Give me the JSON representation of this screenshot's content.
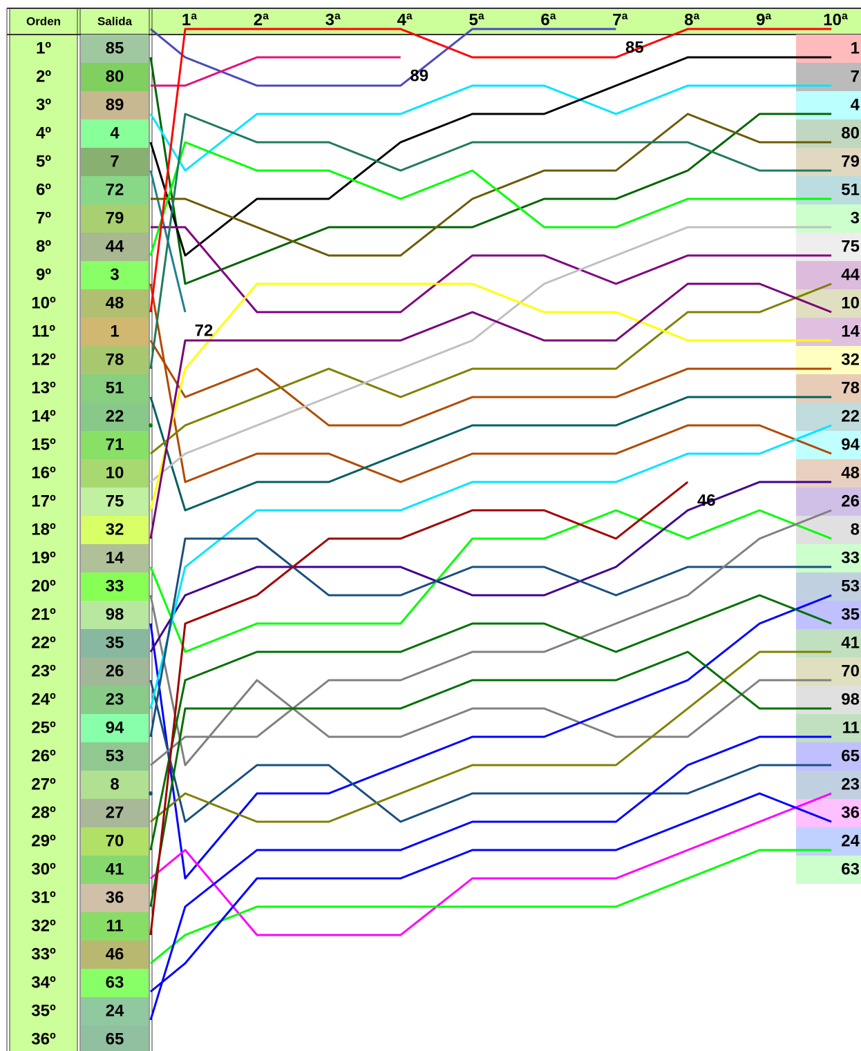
{
  "chart_data": {
    "type": "line",
    "row_header": "Orden",
    "start_header": "Salida",
    "row_labels": [
      "1º",
      "2º",
      "3º",
      "4º",
      "5º",
      "6º",
      "7º",
      "8º",
      "9º",
      "10º",
      "11º",
      "12º",
      "13º",
      "14º",
      "15º",
      "16º",
      "17º",
      "18º",
      "19º",
      "20º",
      "21º",
      "22º",
      "23º",
      "24º",
      "25º",
      "26º",
      "27º",
      "28º",
      "29º",
      "30º",
      "31º",
      "32º",
      "33º",
      "34º",
      "35º",
      "36º"
    ],
    "categories": [
      null,
      "1ª",
      "2ª",
      "3ª",
      "4ª",
      "5ª",
      "6ª",
      "7ª",
      "8ª",
      "9ª",
      "10ª"
    ],
    "ylim": [
      36,
      1
    ],
    "series": [
      {
        "name": "85",
        "color": "#4848c0",
        "start_color": "#a0c8a0",
        "values": [
          1,
          2,
          3,
          3,
          3,
          1,
          1,
          1,
          null,
          null,
          null
        ]
      },
      {
        "name": "80",
        "color": "#006400",
        "start_color": "#80d060",
        "label_color": "#c0d8c0",
        "values": [
          2,
          10,
          9,
          8,
          8,
          8,
          7,
          7,
          6,
          4,
          4
        ]
      },
      {
        "name": "89",
        "color": "#e0107a",
        "start_color": "#c8b890",
        "values": [
          3,
          3,
          2,
          2,
          2,
          null,
          null,
          null,
          null,
          null,
          null
        ]
      },
      {
        "name": "4",
        "color": "#00e5ff",
        "start_color": "#88ff99",
        "label_color": "#bbffff",
        "values": [
          4,
          6,
          4,
          4,
          4,
          3,
          3,
          4,
          3,
          3,
          3
        ]
      },
      {
        "name": "7",
        "color": "#000000",
        "start_color": "#88b070",
        "label_color": "#bbbbbb",
        "values": [
          5,
          9,
          7,
          7,
          5,
          4,
          4,
          3,
          2,
          2,
          2
        ]
      },
      {
        "name": "72",
        "color": "#208090",
        "start_color": "#88d888",
        "values": [
          6,
          11,
          null,
          null,
          null,
          null,
          null,
          null,
          null,
          null,
          null
        ]
      },
      {
        "name": "79",
        "color": "#6b5a00",
        "start_color": "#a8d070",
        "label_color": "#e0d8c0",
        "values": [
          7,
          7,
          8,
          9,
          9,
          7,
          6,
          6,
          4,
          5,
          5
        ]
      },
      {
        "name": "44",
        "color": "#800080",
        "start_color": "#a8b890",
        "label_color": "#ddbbdd",
        "values": [
          8,
          8,
          11,
          11,
          11,
          9,
          9,
          10,
          9,
          9,
          9
        ]
      },
      {
        "name": "3",
        "color": "#00ff00",
        "start_color": "#88ff66",
        "label_color": "#ccffcc",
        "values": [
          9,
          5,
          6,
          6,
          7,
          6,
          8,
          8,
          7,
          7,
          7
        ]
      },
      {
        "name": "48",
        "color": "#b04a00",
        "start_color": "#b0c070",
        "label_color": "#e8d0c0",
        "values": [
          10,
          17,
          16,
          16,
          17,
          16,
          16,
          16,
          15,
          15,
          16
        ]
      },
      {
        "name": "1",
        "color": "#ff0000",
        "start_color": "#d0b870",
        "label_color": "#ffbbbb",
        "values": [
          11,
          1,
          1,
          1,
          1,
          2,
          2,
          2,
          1,
          1,
          1
        ]
      },
      {
        "name": "78",
        "color": "#b04a00",
        "start_color": "#a8c870",
        "label_color": "#e8ccb8",
        "values": [
          12,
          14,
          13,
          15,
          15,
          14,
          14,
          14,
          13,
          13,
          13
        ]
      },
      {
        "name": "51",
        "color": "#1f7a60",
        "start_color": "#88d080",
        "label_color": "#bbdde0",
        "values": [
          13,
          4,
          5,
          5,
          6,
          5,
          5,
          5,
          5,
          6,
          6
        ]
      },
      {
        "name": "22",
        "color": "#006060",
        "start_color": "#88c888",
        "label_color": "#c0dcdc",
        "values": [
          14,
          18,
          17,
          17,
          16,
          15,
          15,
          15,
          14,
          14,
          14
        ]
      },
      {
        "name": "71",
        "color": "#008000",
        "start_color": "#88e066",
        "values": [
          15,
          null,
          null,
          null,
          null,
          null,
          null,
          null,
          null,
          null,
          null
        ]
      },
      {
        "name": "10",
        "color": "#808000",
        "start_color": "#a8d870",
        "label_color": "#e0e0c0",
        "values": [
          16,
          15,
          14,
          13,
          14,
          13,
          13,
          13,
          11,
          11,
          10
        ]
      },
      {
        "name": "75",
        "color": "#c0c0c0",
        "start_color": "#c0f0a0",
        "label_color": "#eeeeee",
        "values": [
          17,
          16,
          15,
          14,
          13,
          12,
          10,
          9,
          8,
          8,
          8
        ]
      },
      {
        "name": "32",
        "color": "#ffff00",
        "start_color": "#d8ff66",
        "label_color": "#ffffc0",
        "values": [
          18,
          13,
          10,
          10,
          10,
          10,
          11,
          11,
          12,
          12,
          12
        ]
      },
      {
        "name": "14",
        "color": "#7a007a",
        "start_color": "#b0c098",
        "label_color": "#e0c0e0",
        "values": [
          19,
          12,
          12,
          12,
          12,
          11,
          12,
          12,
          10,
          10,
          11
        ]
      },
      {
        "name": "33",
        "color": "#00ff00",
        "start_color": "#88ff55",
        "label_color": "#ccffcc",
        "values": [
          20,
          23,
          22,
          22,
          22,
          19,
          19,
          18,
          19,
          18,
          19
        ]
      },
      {
        "name": "98",
        "color": "#808080",
        "start_color": "#b8e8a0",
        "label_color": "#e0e0e0",
        "values": [
          21,
          27,
          24,
          26,
          26,
          25,
          25,
          26,
          26,
          24,
          24
        ]
      },
      {
        "name": "35",
        "color": "#0000ff",
        "start_color": "#88b8a0",
        "label_color": "#c0c0ff",
        "values": [
          22,
          31,
          28,
          28,
          27,
          26,
          26,
          25,
          24,
          22,
          21
        ]
      },
      {
        "name": "26",
        "color": "#400090",
        "start_color": "#a0b898",
        "label_color": "#d0c0e8",
        "values": [
          23,
          21,
          20,
          20,
          20,
          21,
          21,
          20,
          18,
          17,
          17
        ]
      },
      {
        "name": "23",
        "color": "#1a4f80",
        "start_color": "#88cc88",
        "label_color": "#c0d0e0",
        "values": [
          24,
          29,
          27,
          27,
          29,
          28,
          28,
          28,
          28,
          27,
          27
        ]
      },
      {
        "name": "94",
        "color": "#00e5ff",
        "start_color": "#88ffaa",
        "label_color": "#c0ffff",
        "values": [
          25,
          20,
          18,
          18,
          18,
          17,
          17,
          17,
          16,
          16,
          15
        ]
      },
      {
        "name": "53",
        "color": "#1a4f80",
        "start_color": "#90c890",
        "label_color": "#c0d0e0",
        "values": [
          26,
          19,
          19,
          21,
          21,
          20,
          20,
          21,
          20,
          20,
          20
        ]
      },
      {
        "name": "8",
        "color": "#808080",
        "start_color": "#b0e090",
        "label_color": "#e0e0e0",
        "values": [
          27,
          26,
          26,
          24,
          24,
          23,
          23,
          22,
          21,
          19,
          18
        ]
      },
      {
        "name": "27",
        "color": "#1a4f80",
        "start_color": "#a8b898",
        "values": [
          28,
          null,
          null,
          null,
          null,
          null,
          null,
          null,
          null,
          null,
          null
        ]
      },
      {
        "name": "70",
        "color": "#808000",
        "start_color": "#b0e066",
        "label_color": "#e0e0c0",
        "values": [
          29,
          28,
          29,
          29,
          28,
          27,
          27,
          27,
          25,
          23,
          23
        ]
      },
      {
        "name": "41",
        "color": "#007000",
        "start_color": "#88d870",
        "label_color": "#c0e0c0",
        "values": [
          30,
          24,
          23,
          23,
          23,
          22,
          22,
          23,
          22,
          21,
          22
        ]
      },
      {
        "name": "36",
        "color": "#ff00ff",
        "start_color": "#d0c0a8",
        "label_color": "#ffc0ff",
        "values": [
          31,
          30,
          33,
          33,
          33,
          31,
          31,
          31,
          30,
          29,
          28
        ]
      },
      {
        "name": "11",
        "color": "#007000",
        "start_color": "#88dd66",
        "label_color": "#c0e0c0",
        "values": [
          32,
          25,
          25,
          25,
          25,
          24,
          24,
          24,
          23,
          25,
          25
        ]
      },
      {
        "name": "46",
        "color": "#a00000",
        "start_color": "#b8b870",
        "values": [
          33,
          22,
          21,
          19,
          19,
          18,
          18,
          19,
          17,
          null,
          null
        ]
      },
      {
        "name": "63",
        "color": "#00ff00",
        "start_color": "#88ff66",
        "label_color": "#ccffcc",
        "values": [
          34,
          33,
          32,
          32,
          32,
          32,
          32,
          32,
          31,
          30,
          30
        ]
      },
      {
        "name": "24",
        "color": "#0000ff",
        "start_color": "#90c8a0",
        "label_color": "#c0d0ff",
        "values": [
          35,
          34,
          31,
          31,
          31,
          30,
          30,
          30,
          29,
          28,
          29
        ]
      },
      {
        "name": "65",
        "color": "#0000ff",
        "start_color": "#90c0a0",
        "label_color": "#c0c0ff",
        "values": [
          36,
          32,
          30,
          30,
          30,
          29,
          29,
          29,
          27,
          26,
          26
        ]
      }
    ]
  }
}
